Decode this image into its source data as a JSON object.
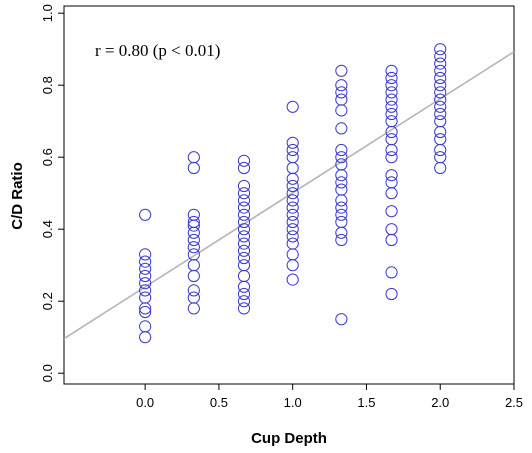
{
  "chart_data": {
    "type": "scatter",
    "title": "",
    "xlabel": "Cup Depth",
    "ylabel": "C/D Ratio",
    "xlim": [
      -0.55,
      2.5
    ],
    "ylim": [
      -0.03,
      1.02
    ],
    "x_ticks": [
      0.0,
      0.5,
      1.0,
      1.5,
      2.0,
      2.5
    ],
    "x_tick_labels": [
      "0.0",
      "0.5",
      "1.0",
      "1.5",
      "2.0",
      "2.5"
    ],
    "y_ticks": [
      0.0,
      0.2,
      0.4,
      0.6,
      0.8,
      1.0
    ],
    "y_tick_labels": [
      "0.0",
      "0.2",
      "0.4",
      "0.6",
      "0.8",
      "1.0"
    ],
    "grid": false,
    "legend": null,
    "point_color": "#3a3acc",
    "line_color": "#b5b5b5",
    "annotation": "r = 0.80 (p < 0.01)",
    "fit_line": {
      "slope": 0.2613,
      "intercept": 0.2397
    },
    "points": [
      {
        "x": 0.0,
        "y": [
          0.1,
          0.13,
          0.17,
          0.18,
          0.21,
          0.23,
          0.25,
          0.27,
          0.29,
          0.31,
          0.33,
          0.44
        ]
      },
      {
        "x": 0.33,
        "y": [
          0.18,
          0.21,
          0.23,
          0.27,
          0.3,
          0.33,
          0.35,
          0.37,
          0.39,
          0.41,
          0.42,
          0.44,
          0.57,
          0.6
        ]
      },
      {
        "x": 0.67,
        "y": [
          0.18,
          0.2,
          0.22,
          0.24,
          0.27,
          0.3,
          0.32,
          0.34,
          0.36,
          0.38,
          0.4,
          0.42,
          0.44,
          0.46,
          0.48,
          0.5,
          0.52,
          0.57,
          0.59
        ]
      },
      {
        "x": 1.0,
        "y": [
          0.26,
          0.3,
          0.33,
          0.36,
          0.38,
          0.4,
          0.42,
          0.44,
          0.46,
          0.48,
          0.5,
          0.52,
          0.54,
          0.57,
          0.6,
          0.62,
          0.64,
          0.74
        ]
      },
      {
        "x": 1.33,
        "y": [
          0.15,
          0.37,
          0.39,
          0.42,
          0.44,
          0.46,
          0.48,
          0.51,
          0.53,
          0.55,
          0.58,
          0.6,
          0.62,
          0.68,
          0.73,
          0.76,
          0.78,
          0.8,
          0.84
        ]
      },
      {
        "x": 1.67,
        "y": [
          0.22,
          0.28,
          0.37,
          0.4,
          0.45,
          0.5,
          0.53,
          0.55,
          0.6,
          0.62,
          0.65,
          0.67,
          0.7,
          0.72,
          0.74,
          0.76,
          0.78,
          0.8,
          0.82,
          0.84
        ]
      },
      {
        "x": 2.0,
        "y": [
          0.57,
          0.6,
          0.62,
          0.65,
          0.67,
          0.7,
          0.72,
          0.74,
          0.76,
          0.78,
          0.8,
          0.82,
          0.84,
          0.86,
          0.88,
          0.9
        ]
      }
    ]
  }
}
